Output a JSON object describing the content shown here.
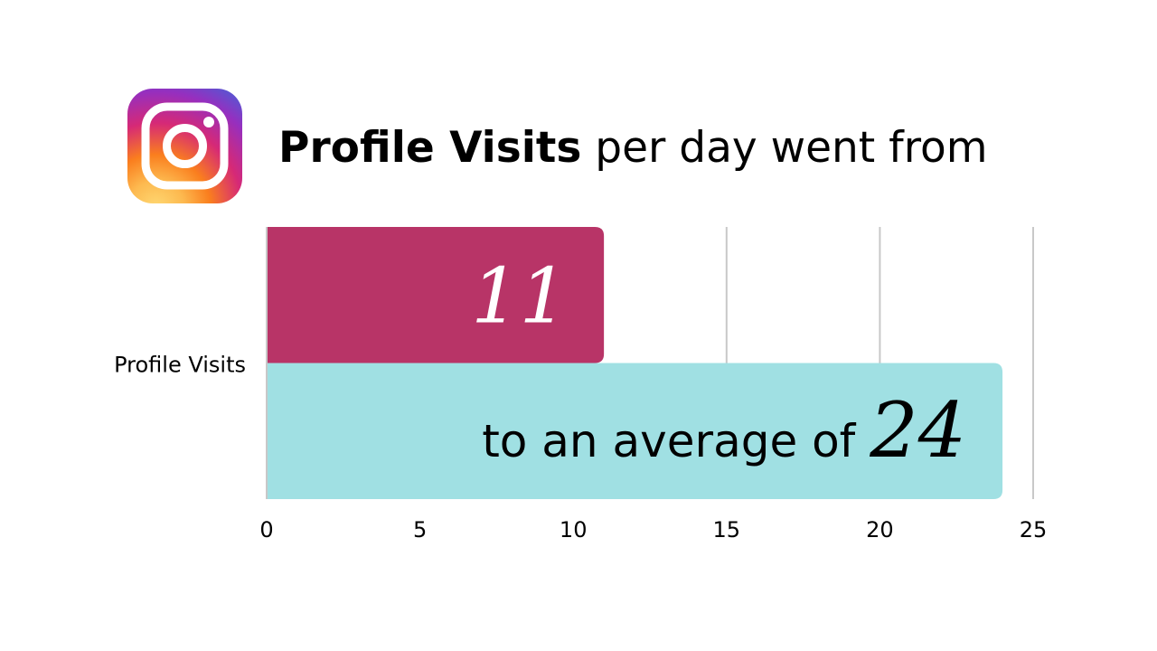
{
  "header": {
    "title_bold": "Profile Visits",
    "title_rest": " per day went from",
    "logo_icon": "instagram-icon"
  },
  "colors": {
    "bar_before": "#b83467",
    "bar_after": "#a0e0e3",
    "logo_gradient": [
      "#feda75",
      "#fa7e1e",
      "#d62976",
      "#962fbf",
      "#4f5bd5"
    ]
  },
  "chart_data": {
    "type": "bar",
    "orientation": "horizontal",
    "categories": [
      "Profile Visits"
    ],
    "series": [
      {
        "values": [
          11
        ],
        "color": "#b83467",
        "label": "11"
      },
      {
        "values": [
          24
        ],
        "color": "#a0e0e3",
        "label_prefix": "to an average of ",
        "label": "24"
      }
    ],
    "xlim": [
      0,
      25
    ],
    "xticks": [
      0,
      5,
      10,
      15,
      20,
      25
    ],
    "xtick_labels": [
      "0",
      "5",
      "10",
      "15",
      "20",
      "25"
    ],
    "title": "Profile Visits per day went from",
    "xlabel": "",
    "ylabel": "",
    "grid": true,
    "legend": "none"
  }
}
